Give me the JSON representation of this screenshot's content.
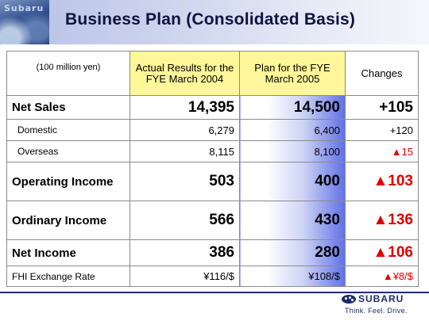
{
  "header": {
    "brand_text": "Subaru",
    "title": "Business Plan (Consolidated Basis)"
  },
  "table": {
    "unit": "(100 million yen)",
    "columns": {
      "actual": "Actual Results for the FYE March 2004",
      "plan": "Plan for the FYE March 2005",
      "change": "Changes"
    },
    "rows": [
      {
        "label": "Net Sales",
        "actual": "14,395",
        "plan": "14,500",
        "change": "+105"
      },
      {
        "label": "Domestic",
        "actual": "6,279",
        "plan": "6,400",
        "change": "+120"
      },
      {
        "label": "Overseas",
        "actual": "8,115",
        "plan": "8,100",
        "change": "▲15"
      },
      {
        "label": "Operating Income",
        "actual": "503",
        "plan": "400",
        "change": "▲103"
      },
      {
        "label": "Ordinary Income",
        "actual": "566",
        "plan": "430",
        "change": "▲136"
      },
      {
        "label": "Net Income",
        "actual": "386",
        "plan": "280",
        "change": "▲106"
      },
      {
        "label": "FHI Exchange Rate",
        "actual": "¥116/$",
        "plan": "¥108/$",
        "change": "▲¥8/$"
      }
    ]
  },
  "footer": {
    "logo_text": "SUBARU",
    "tagline": "Think. Feel. Drive."
  },
  "colors": {
    "title_text": "#0d1440",
    "header_highlight": "#fff799",
    "plan_gradient_end": "#6070e6",
    "negative_change": "#e00000",
    "footer_navy": "#1d2d6b"
  }
}
